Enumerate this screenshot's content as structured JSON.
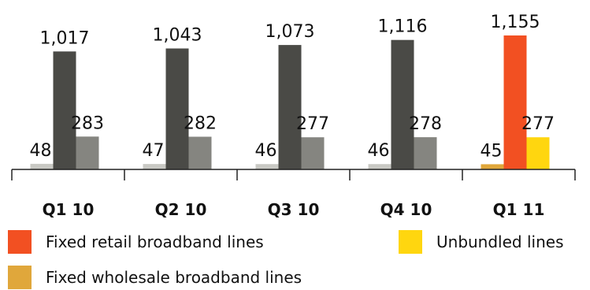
{
  "chart_data": {
    "type": "bar",
    "categories": [
      "Q1 10",
      "Q2 10",
      "Q3 10",
      "Q4 10",
      "Q1 11"
    ],
    "series": [
      {
        "name": "Fixed wholesale broadband lines",
        "values": [
          48,
          47,
          46,
          46,
          45
        ]
      },
      {
        "name": "Fixed retail broadband lines",
        "values": [
          1017,
          1043,
          1073,
          1116,
          1155
        ]
      },
      {
        "name": "Unbundled lines",
        "values": [
          283,
          282,
          277,
          278,
          277
        ]
      }
    ],
    "value_labels": [
      [
        "48",
        "47",
        "46",
        "46",
        "45"
      ],
      [
        "1,017",
        "1,043",
        "1,073",
        "1,116",
        "1,155"
      ],
      [
        "283",
        "282",
        "277",
        "278",
        "277"
      ]
    ],
    "ylim": [
      0,
      1155
    ],
    "grid": false,
    "colors": {
      "historical": [
        "#c9c9c4",
        "#4a4a46",
        "#858580"
      ],
      "highlight": [
        "#e0a73b",
        "#f25022",
        "#ffd60f"
      ]
    },
    "highlight_category_index": 4
  },
  "legend": [
    {
      "label": "Fixed retail broadband lines",
      "color": "#f25022"
    },
    {
      "label": "Unbundled lines",
      "color": "#ffd60f"
    },
    {
      "label": "Fixed wholesale broadband lines",
      "color": "#e0a73b"
    }
  ]
}
